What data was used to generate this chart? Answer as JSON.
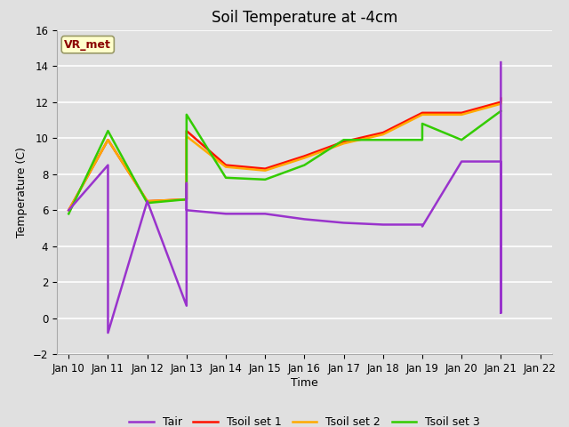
{
  "title": "Soil Temperature at -4cm",
  "xlabel": "Time",
  "ylabel": "Temperature (C)",
  "ylim": [
    -2,
    16
  ],
  "yticks": [
    -2,
    0,
    2,
    4,
    6,
    8,
    10,
    12,
    14,
    16
  ],
  "background_color": "#e0e0e0",
  "plot_bg_color": "#e0e0e0",
  "grid_color": "#ffffff",
  "annotation_label": "VR_met",
  "annotation_color": "#8b0000",
  "annotation_bg": "#ffffcc",
  "annotation_edge": "#999966",
  "x_labels": [
    "Jan 10",
    "Jan 11",
    "Jan 12",
    "Jan 13",
    "Jan 14",
    "Jan 15",
    "Jan 16",
    "Jan 17",
    "Jan 18",
    "Jan 19",
    "Jan 20",
    "Jan 21",
    "Jan 22"
  ],
  "x_values": [
    0,
    1,
    2,
    3,
    4,
    5,
    6,
    7,
    8,
    9,
    10,
    11,
    12
  ],
  "tair": {
    "color": "#9933cc",
    "label": "Tair",
    "x": [
      0,
      1,
      1,
      2,
      3,
      3,
      3,
      4,
      5,
      6,
      7,
      8,
      9,
      9,
      10,
      11,
      11,
      11
    ],
    "y": [
      6.0,
      8.5,
      -0.8,
      6.5,
      0.7,
      7.5,
      6.0,
      5.8,
      5.8,
      5.5,
      5.3,
      5.2,
      5.2,
      5.1,
      8.7,
      8.7,
      0.3,
      14.2
    ]
  },
  "tsoil1": {
    "color": "#ff1100",
    "label": "Tsoil set 1",
    "x": [
      0,
      1,
      2,
      3,
      3,
      4,
      5,
      6,
      7,
      8,
      9,
      10,
      11,
      11
    ],
    "y": [
      6.0,
      9.9,
      6.5,
      6.6,
      10.4,
      8.5,
      8.3,
      9.0,
      9.8,
      10.3,
      11.4,
      11.4,
      12.0,
      12.2
    ]
  },
  "tsoil2": {
    "color": "#ffaa00",
    "label": "Tsoil set 2",
    "x": [
      0,
      1,
      2,
      3,
      3,
      4,
      5,
      6,
      7,
      8,
      9,
      10,
      11,
      11
    ],
    "y": [
      6.0,
      9.9,
      6.5,
      6.6,
      10.1,
      8.4,
      8.2,
      8.9,
      9.7,
      10.2,
      11.3,
      11.3,
      11.9,
      12.0
    ]
  },
  "tsoil3": {
    "color": "#33cc00",
    "label": "Tsoil set 3",
    "x": [
      0,
      1,
      2,
      3,
      3,
      4,
      5,
      6,
      7,
      8,
      9,
      9,
      10,
      11,
      11
    ],
    "y": [
      5.8,
      10.4,
      6.4,
      6.6,
      11.3,
      7.8,
      7.7,
      8.5,
      9.9,
      9.9,
      9.9,
      10.8,
      9.9,
      11.5,
      11.5
    ]
  },
  "legend_colors": [
    "#9933cc",
    "#ff1100",
    "#ffaa00",
    "#33cc00"
  ],
  "legend_labels": [
    "Tair",
    "Tsoil set 1",
    "Tsoil set 2",
    "Tsoil set 3"
  ]
}
